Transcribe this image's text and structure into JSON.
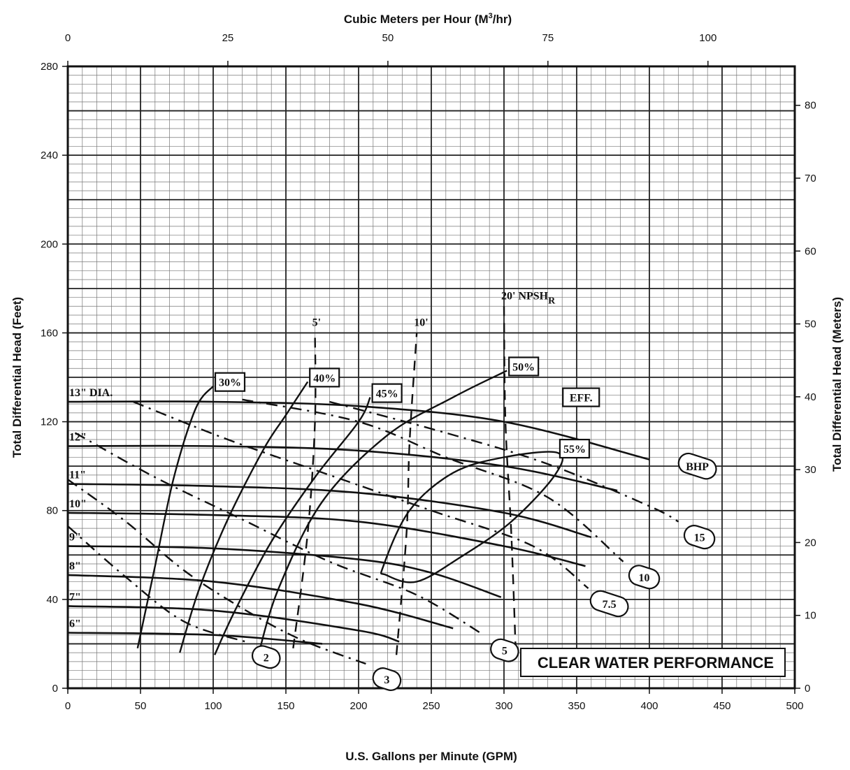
{
  "chart_data": {
    "type": "line",
    "title": "",
    "xlabel": "U.S. Gallons per Minute (GPM)",
    "ylabel": "Total Differential Head (Feet)",
    "x2label": "Cubic Meters per Hour (M3/hr)",
    "y2label": "Total Differential Head (Meters)",
    "xlim": [
      0,
      500
    ],
    "ylim": [
      0,
      280
    ],
    "x_ticks": [
      0,
      50,
      100,
      150,
      200,
      250,
      300,
      350,
      400,
      450,
      500
    ],
    "y_ticks": [
      0,
      40,
      80,
      120,
      160,
      200,
      240,
      280
    ],
    "x2_ticks": [
      0,
      25,
      50,
      75,
      100
    ],
    "y2_ticks": [
      0,
      10,
      20,
      30,
      40,
      50,
      60,
      70,
      80
    ],
    "grid": true,
    "annotation": "CLEAR WATER PERFORMANCE",
    "impeller_curves": [
      {
        "label": "13\" DIA.",
        "points": [
          [
            0,
            129
          ],
          [
            100,
            129
          ],
          [
            200,
            127
          ],
          [
            300,
            120
          ],
          [
            400,
            103
          ]
        ]
      },
      {
        "label": "12\"",
        "points": [
          [
            0,
            109
          ],
          [
            100,
            109
          ],
          [
            200,
            107
          ],
          [
            300,
            100
          ],
          [
            378,
            89
          ]
        ]
      },
      {
        "label": "11\"",
        "points": [
          [
            0,
            92
          ],
          [
            100,
            91
          ],
          [
            200,
            88
          ],
          [
            300,
            79
          ],
          [
            360,
            68
          ]
        ]
      },
      {
        "label": "10\"",
        "points": [
          [
            0,
            79
          ],
          [
            100,
            78
          ],
          [
            200,
            75
          ],
          [
            300,
            64
          ],
          [
            356,
            55
          ]
        ]
      },
      {
        "label": "9\"",
        "points": [
          [
            0,
            64
          ],
          [
            100,
            63
          ],
          [
            200,
            58
          ],
          [
            250,
            52
          ],
          [
            298,
            41
          ]
        ]
      },
      {
        "label": "8\"",
        "points": [
          [
            0,
            51
          ],
          [
            100,
            48
          ],
          [
            200,
            38
          ],
          [
            265,
            27
          ]
        ]
      },
      {
        "label": "7\"",
        "points": [
          [
            0,
            37
          ],
          [
            100,
            35
          ],
          [
            200,
            26
          ],
          [
            228,
            21
          ]
        ]
      },
      {
        "label": "6\"",
        "points": [
          [
            0,
            25
          ],
          [
            100,
            24
          ],
          [
            175,
            20
          ]
        ]
      }
    ],
    "efficiency_curves": [
      {
        "label": "30%",
        "points": [
          [
            48,
            18
          ],
          [
            60,
            55
          ],
          [
            73,
            95
          ],
          [
            88,
            126
          ],
          [
            100,
            136
          ]
        ]
      },
      {
        "label": "40%",
        "points": [
          [
            77,
            16
          ],
          [
            90,
            44
          ],
          [
            110,
            76
          ],
          [
            135,
            108
          ],
          [
            150,
            123
          ],
          [
            165,
            138
          ]
        ]
      },
      {
        "label": "45%",
        "points": [
          [
            101,
            15
          ],
          [
            115,
            35
          ],
          [
            140,
            66
          ],
          [
            170,
            95
          ],
          [
            200,
            120
          ],
          [
            208,
            131
          ]
        ]
      },
      {
        "label": "50%",
        "points": [
          [
            131,
            15
          ],
          [
            145,
            45
          ],
          [
            175,
            84
          ],
          [
            220,
            114
          ],
          [
            265,
            131
          ],
          [
            302,
            143
          ]
        ]
      },
      {
        "label": "55%",
        "points": [
          [
            217,
            55
          ],
          [
            235,
            80
          ],
          [
            265,
            97
          ],
          [
            300,
            104
          ],
          [
            337,
            106
          ],
          [
            335,
            96
          ],
          [
            305,
            75
          ],
          [
            270,
            59
          ],
          [
            240,
            48
          ],
          [
            219,
            51
          ]
        ]
      }
    ],
    "bhp_curves": [
      {
        "label": "2",
        "points": [
          [
            0,
            73
          ],
          [
            40,
            50
          ],
          [
            80,
            30
          ],
          [
            122,
            21
          ]
        ]
      },
      {
        "label": "3",
        "points": [
          [
            0,
            94
          ],
          [
            40,
            75
          ],
          [
            80,
            53
          ],
          [
            120,
            36
          ],
          [
            160,
            22
          ],
          [
            205,
            11
          ]
        ]
      },
      {
        "label": "5",
        "points": [
          [
            5,
            115
          ],
          [
            60,
            95
          ],
          [
            120,
            76
          ],
          [
            180,
            57
          ],
          [
            240,
            42
          ],
          [
            286,
            24
          ]
        ]
      },
      {
        "label": "7.5",
        "points": [
          [
            45,
            129
          ],
          [
            110,
            112
          ],
          [
            180,
            96
          ],
          [
            250,
            80
          ],
          [
            320,
            64
          ],
          [
            358,
            45
          ]
        ]
      },
      {
        "label": "10",
        "points": [
          [
            120,
            130
          ],
          [
            200,
            120
          ],
          [
            260,
            104
          ],
          [
            330,
            86
          ],
          [
            382,
            57
          ]
        ]
      },
      {
        "label": "15",
        "points": [
          [
            180,
            129
          ],
          [
            260,
            115
          ],
          [
            330,
            101
          ],
          [
            400,
            82
          ],
          [
            420,
            75
          ]
        ]
      }
    ],
    "npsh_curves": [
      {
        "label": "5'",
        "points": [
          [
            155,
            18
          ],
          [
            165,
            70
          ],
          [
            170,
            120
          ],
          [
            170,
            160
          ]
        ]
      },
      {
        "label": "10'",
        "points": [
          [
            226,
            15
          ],
          [
            233,
            70
          ],
          [
            235,
            110
          ],
          [
            240,
            160
          ]
        ]
      },
      {
        "label": "20' NPSH",
        "sub": "R",
        "points": [
          [
            300,
            172
          ],
          [
            301,
            120
          ],
          [
            305,
            70
          ],
          [
            308,
            18
          ]
        ]
      }
    ],
    "series_labels": {
      "eff": "EFF.",
      "bhp": "BHP"
    }
  }
}
